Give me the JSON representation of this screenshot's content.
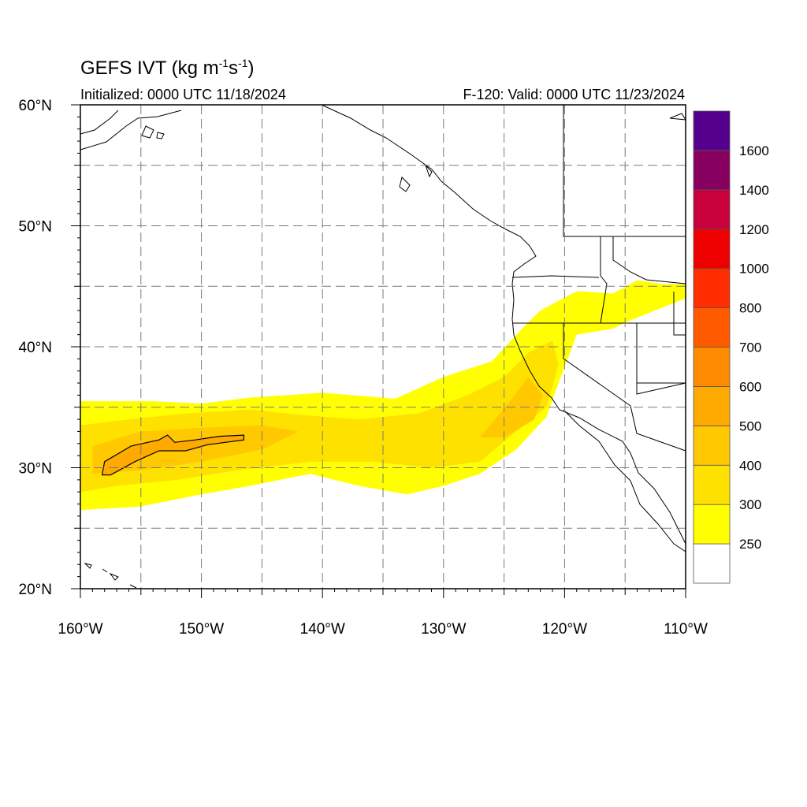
{
  "header": {
    "title_main": "GEFS IVT (kg m",
    "title_exp1": "-1",
    "title_mid": "s",
    "title_exp2": "-1",
    "title_end": ")",
    "initialized": "Initialized: 0000 UTC 11/18/2024",
    "valid": "F-120: Valid: 0000 UTC 11/23/2024"
  },
  "map": {
    "lon_range": [
      -160,
      -110
    ],
    "lat_range": [
      20,
      60
    ],
    "lat_labels": [
      {
        "lat": 60,
        "text": "60°N"
      },
      {
        "lat": 50,
        "text": "50°N"
      },
      {
        "lat": 40,
        "text": "40°N"
      },
      {
        "lat": 30,
        "text": "30°N"
      },
      {
        "lat": 20,
        "text": "20°N"
      }
    ],
    "lon_labels": [
      {
        "lon": -160,
        "text": "160°W"
      },
      {
        "lon": -150,
        "text": "150°W"
      },
      {
        "lon": -140,
        "text": "140°W"
      },
      {
        "lon": -130,
        "text": "130°W"
      },
      {
        "lon": -120,
        "text": "120°W"
      },
      {
        "lon": -110,
        "text": "110°W"
      }
    ],
    "gridlines_dashed": true,
    "grid_lat_step": 5,
    "grid_lon_step": 5
  },
  "colorbar": {
    "levels": [
      "250",
      "300",
      "400",
      "500",
      "600",
      "700",
      "800",
      "1000",
      "1200",
      "1400",
      "1600"
    ],
    "colors": [
      "#ffffff",
      "#ffff00",
      "#ffe100",
      "#ffc800",
      "#ffaa00",
      "#ff8c00",
      "#ff5a00",
      "#ff2d00",
      "#ee0000",
      "#c8003c",
      "#87005f",
      "#55008c"
    ]
  },
  "chart_data": {
    "type": "heatmap",
    "variable": "IVT",
    "plume": {
      "description_levels": "values between 250 and 500 kg m-1 s-1 over the eastern Pacific",
      "yellow_250": [
        [
          -160,
          35.5
        ],
        [
          -154,
          35.5
        ],
        [
          -150,
          35.3
        ],
        [
          -146,
          35.8
        ],
        [
          -140,
          36.2
        ],
        [
          -134,
          35.7
        ],
        [
          -130,
          37.5
        ],
        [
          -126,
          38.8
        ],
        [
          -123.5,
          41.5
        ],
        [
          -122,
          43
        ],
        [
          -119,
          44.6
        ],
        [
          -116,
          44.4
        ],
        [
          -114,
          45.5
        ],
        [
          -112,
          45.2
        ],
        [
          -110,
          45.2
        ],
        [
          -110,
          44
        ],
        [
          -115,
          42
        ],
        [
          -116,
          41.5
        ],
        [
          -119,
          41
        ],
        [
          -120.5,
          37
        ],
        [
          -121.5,
          34.2
        ],
        [
          -124,
          31.5
        ],
        [
          -127,
          29.5
        ],
        [
          -130,
          28.5
        ],
        [
          -133,
          27.8
        ],
        [
          -137,
          28.5
        ],
        [
          -141,
          29.5
        ],
        [
          -146,
          28.5
        ],
        [
          -150,
          27.8
        ],
        [
          -155,
          26.8
        ],
        [
          -160,
          26.5
        ]
      ],
      "gold_300": [
        [
          -160,
          33.5
        ],
        [
          -156,
          34
        ],
        [
          -151,
          34.5
        ],
        [
          -146,
          34.8
        ],
        [
          -141,
          34.3
        ],
        [
          -137,
          34
        ],
        [
          -132,
          34.5
        ],
        [
          -128,
          36
        ],
        [
          -125,
          37.5
        ],
        [
          -123,
          39.5
        ],
        [
          -121,
          40.5
        ],
        [
          -120.5,
          38.5
        ],
        [
          -121.5,
          35
        ],
        [
          -124,
          33
        ],
        [
          -127,
          30.5
        ],
        [
          -131,
          30
        ],
        [
          -136,
          30.5
        ],
        [
          -141,
          30.5
        ],
        [
          -147,
          29.8
        ],
        [
          -152,
          29
        ],
        [
          -157,
          28.5
        ],
        [
          -160,
          28
        ]
      ],
      "orange_400": [
        [
          -159,
          31.8
        ],
        [
          -155,
          33
        ],
        [
          -150,
          33.3
        ],
        [
          -145,
          33.5
        ],
        [
          -142,
          33
        ],
        [
          -145,
          31.5
        ],
        [
          -150,
          30.5
        ],
        [
          -155,
          29.8
        ],
        [
          -159,
          29.5
        ]
      ],
      "orange_400_coast": [
        [
          -127,
          32.5
        ],
        [
          -124.5,
          35.5
        ],
        [
          -123,
          37.5
        ],
        [
          -121.8,
          36
        ],
        [
          -122.5,
          34
        ],
        [
          -125,
          32.5
        ]
      ],
      "contour_500": [
        [
          -158.2,
          29.4
        ],
        [
          -158,
          30.5
        ],
        [
          -155.8,
          31.8
        ],
        [
          -153.5,
          32.3
        ],
        [
          -152.8,
          32.7
        ],
        [
          -152.2,
          32.1
        ],
        [
          -150.5,
          32.3
        ],
        [
          -148.5,
          32.6
        ],
        [
          -146.5,
          32.7
        ],
        [
          -146.5,
          32.3
        ],
        [
          -149.5,
          31.9
        ],
        [
          -151.3,
          31.4
        ],
        [
          -153.5,
          31.4
        ],
        [
          -155.5,
          30.5
        ],
        [
          -157.5,
          29.4
        ]
      ]
    }
  }
}
